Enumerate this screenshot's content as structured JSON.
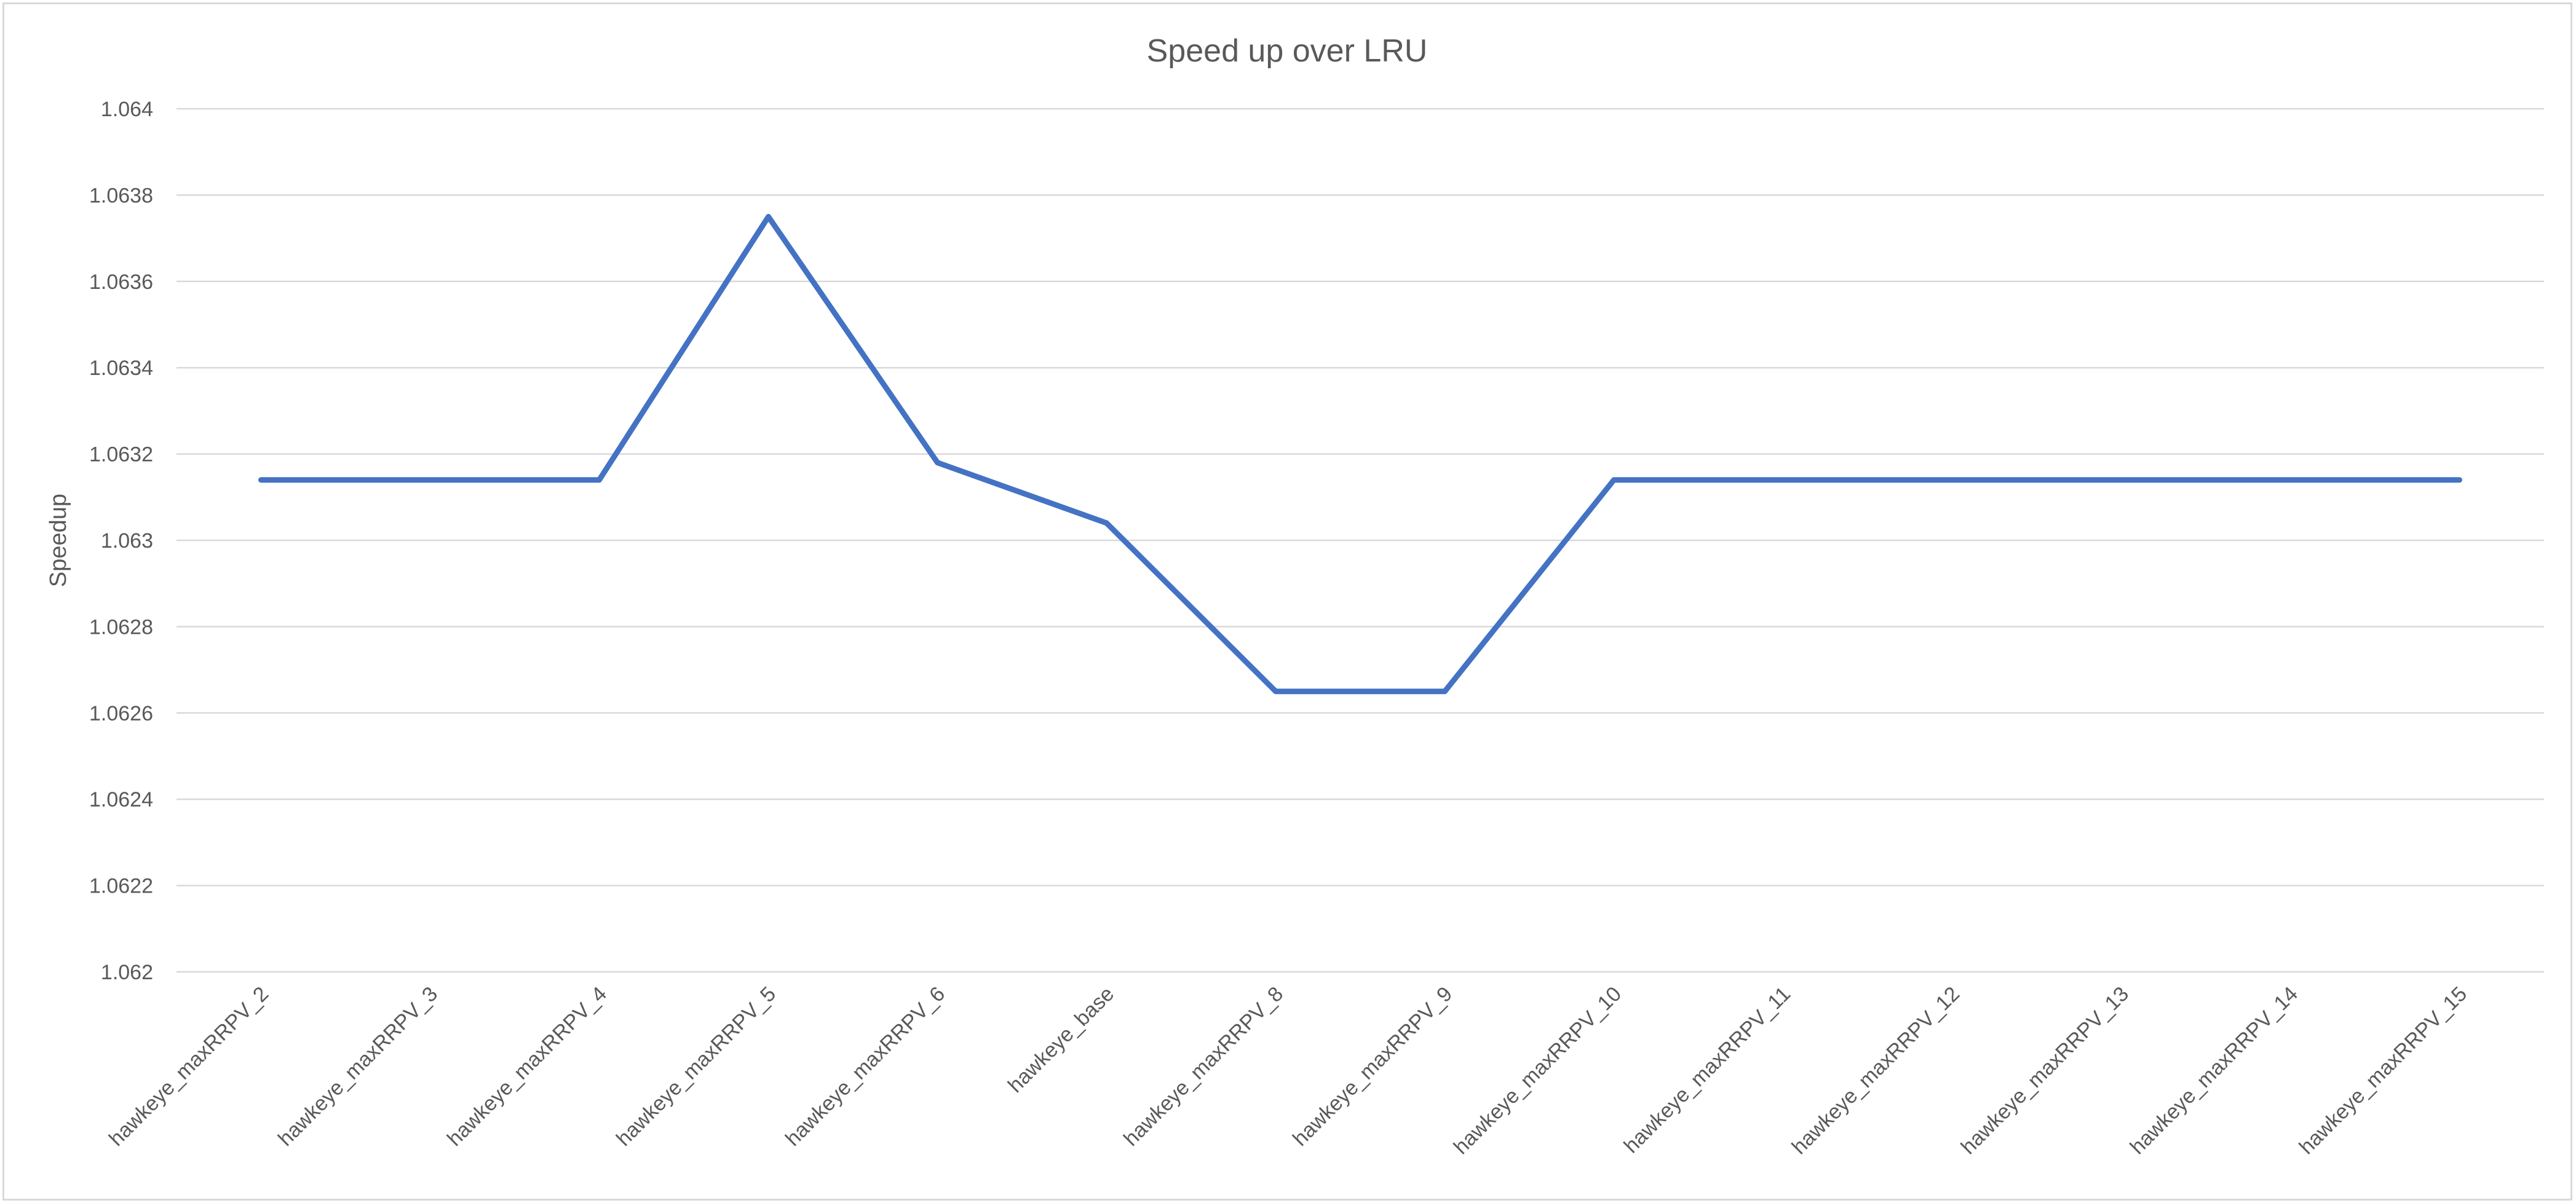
{
  "chart_data": {
    "type": "line",
    "title": "Speed up over LRU",
    "xlabel": "",
    "ylabel": "Speedup",
    "categories": [
      "hawkeye_maxRRPV_2",
      "hawkeye_maxRRPV_3",
      "hawkeye_maxRRPV_4",
      "hawkeye_maxRRPV_5",
      "hawkeye_maxRRPV_6",
      "hawkeye_base",
      "hawkeye_maxRRPV_8",
      "hawkeye_maxRRPV_9",
      "hawkeye_maxRRPV_10",
      "hawkeye_maxRRPV_11",
      "hawkeye_maxRRPV_12",
      "hawkeye_maxRRPV_13",
      "hawkeye_maxRRPV_14",
      "hawkeye_maxRRPV_15"
    ],
    "series": [
      {
        "values": [
          1.06314,
          1.06314,
          1.06314,
          1.06375,
          1.06318,
          1.06304,
          1.06265,
          1.06265,
          1.06314,
          1.06314,
          1.06314,
          1.06314,
          1.06314,
          1.06314
        ],
        "color": "#4472c4"
      }
    ],
    "ylim": [
      1.062,
      1.064
    ],
    "yticks": [
      1.062,
      1.0622,
      1.0624,
      1.0626,
      1.0628,
      1.063,
      1.0632,
      1.0634,
      1.0636,
      1.0638,
      1.064
    ],
    "ytick_labels": [
      "1.062",
      "1.0622",
      "1.0624",
      "1.0626",
      "1.0628",
      "1.063",
      "1.0632",
      "1.0634",
      "1.0636",
      "1.0638",
      "1.064"
    ],
    "grid": true,
    "legend": "none"
  }
}
